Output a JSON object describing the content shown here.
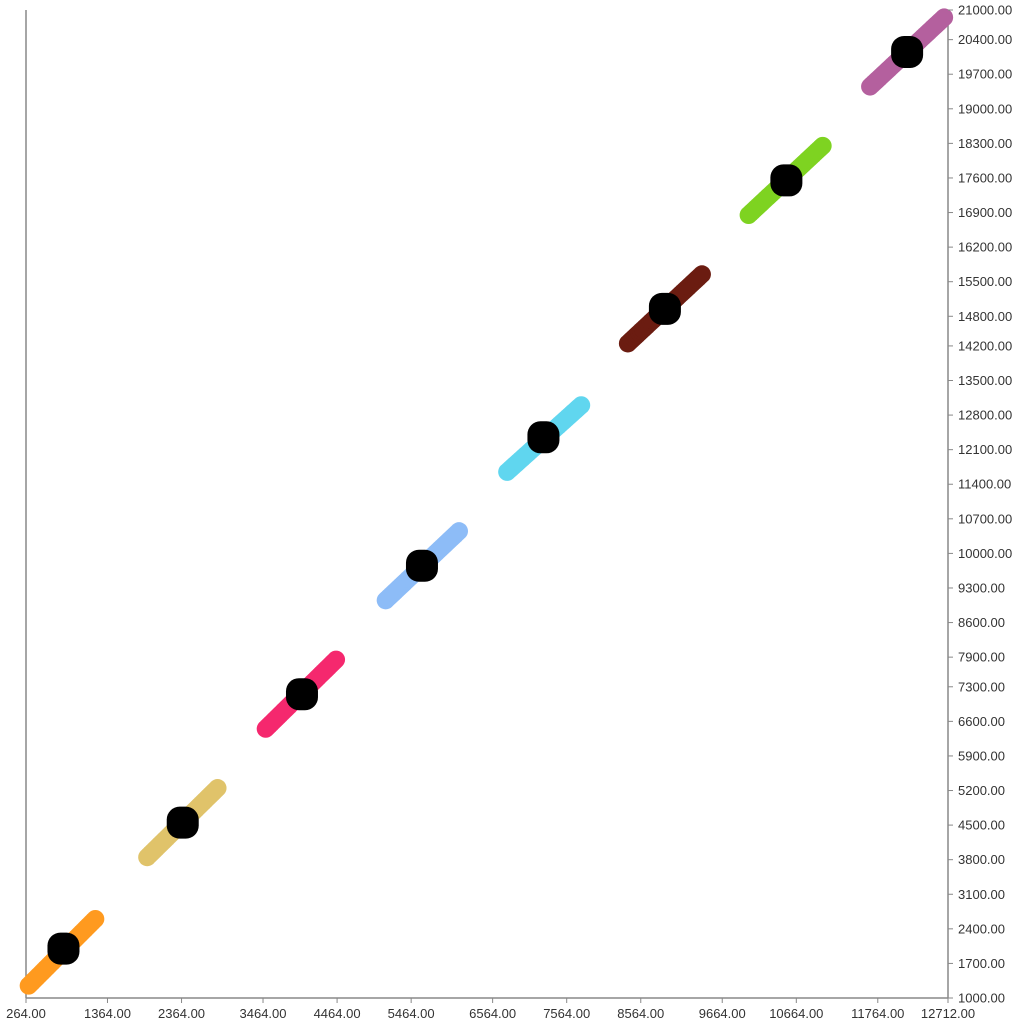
{
  "chart_data": {
    "type": "scatter",
    "title": "",
    "xlabel": "",
    "ylabel": "",
    "xlim": [
      264,
      12712
    ],
    "ylim": [
      1000,
      21000
    ],
    "x_ticks": [
      "264.00",
      "1364.00",
      "2364.00",
      "3464.00",
      "4464.00",
      "5464.00",
      "6564.00",
      "7564.00",
      "8564.00",
      "9664.00",
      "10664.00",
      "11764.00",
      "12712.00"
    ],
    "y_ticks": [
      "1000.00",
      "1700.00",
      "2400.00",
      "3100.00",
      "3800.00",
      "4500.00",
      "5200.00",
      "5900.00",
      "6600.00",
      "7300.00",
      "7900.00",
      "8600.00",
      "9300.00",
      "10000.00",
      "10700.00",
      "11400.00",
      "12100.00",
      "12800.00",
      "13500.00",
      "14200.00",
      "14800.00",
      "15500.00",
      "16200.00",
      "16900.00",
      "17600.00",
      "18300.00",
      "19000.00",
      "19700.00",
      "20400.00",
      "21000.00"
    ],
    "grid": false,
    "series": [
      {
        "color": "#ff9a1f",
        "x_range": [
          300,
          1200
        ],
        "y_range": [
          1250,
          2600
        ],
        "center": [
          770,
          2000
        ]
      },
      {
        "color": "#e0c36a",
        "x_range": [
          1900,
          2850
        ],
        "y_range": [
          3850,
          5250
        ],
        "center": [
          2380,
          4550
        ]
      },
      {
        "color": "#f5286e",
        "x_range": [
          3500,
          4450
        ],
        "y_range": [
          6450,
          7850
        ],
        "center": [
          3990,
          7150
        ]
      },
      {
        "color": "#8dbcf7",
        "x_range": [
          5120,
          6110
        ],
        "y_range": [
          9050,
          10450
        ],
        "center": [
          5610,
          9750
        ]
      },
      {
        "color": "#60d6ef",
        "x_range": [
          6760,
          7760
        ],
        "y_range": [
          11650,
          13000
        ],
        "center": [
          7250,
          12350
        ]
      },
      {
        "color": "#6b1c11",
        "x_range": [
          8390,
          9390
        ],
        "y_range": [
          14250,
          15650
        ],
        "center": [
          8890,
          14950
        ]
      },
      {
        "color": "#7ed321",
        "x_range": [
          10020,
          11020
        ],
        "y_range": [
          16850,
          18250
        ],
        "center": [
          10530,
          17550
        ]
      },
      {
        "color": "#b4609e",
        "x_range": [
          11660,
          12660
        ],
        "y_range": [
          19450,
          20850
        ],
        "center": [
          12160,
          20150
        ]
      }
    ],
    "center_marker_color": "#000000"
  }
}
